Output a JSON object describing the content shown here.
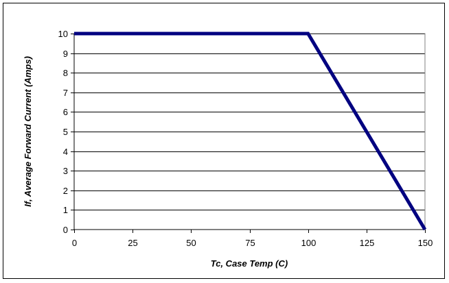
{
  "chart_data": {
    "type": "line",
    "xlabel": "Tc, Case Temp (C)",
    "ylabel": "If, Average Forward Current (Amps)",
    "xlim": [
      0,
      150
    ],
    "ylim": [
      0,
      10
    ],
    "x_ticks": [
      0,
      25,
      50,
      75,
      100,
      125,
      150
    ],
    "y_ticks": [
      0,
      1,
      2,
      3,
      4,
      5,
      6,
      7,
      8,
      9,
      10
    ],
    "grid": true,
    "series": [
      {
        "x": [
          0,
          100,
          150
        ],
        "y": [
          10,
          10,
          0
        ],
        "color": "#000080"
      }
    ]
  }
}
